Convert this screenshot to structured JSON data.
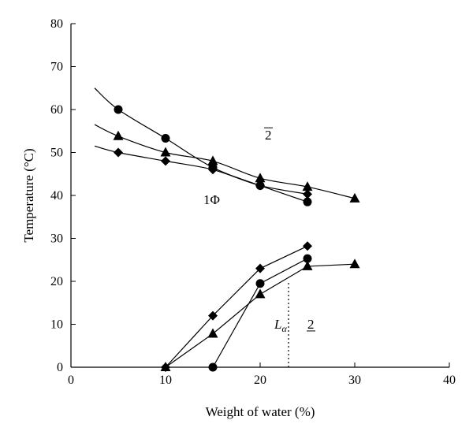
{
  "chart_data": {
    "type": "scatter",
    "xlabel": "Weight of water (%)",
    "ylabel": "Temperature (°C)",
    "xlim": [
      0,
      40
    ],
    "ylim": [
      0,
      80
    ],
    "x_ticks": [
      0,
      10,
      20,
      30,
      40
    ],
    "y_ticks": [
      0,
      10,
      20,
      30,
      40,
      50,
      60,
      70,
      80
    ],
    "grid": false,
    "series": [
      {
        "marker": "circle",
        "upper_points": [
          [
            5,
            60
          ],
          [
            10,
            53.3
          ],
          [
            15,
            46.5
          ],
          [
            20,
            42.3
          ],
          [
            25,
            38.5
          ]
        ],
        "upper_curve": [
          [
            2.5,
            65
          ],
          [
            5,
            60
          ],
          [
            10,
            53.3
          ],
          [
            15,
            46.5
          ],
          [
            20,
            42.3
          ],
          [
            25,
            38.5
          ]
        ],
        "lower_points": [
          [
            15,
            0
          ],
          [
            20,
            19.5
          ],
          [
            25,
            25.3
          ]
        ],
        "lower_curve": [
          [
            15,
            0
          ],
          [
            20,
            19.5
          ],
          [
            25,
            25.3
          ]
        ]
      },
      {
        "marker": "triangle",
        "upper_points": [
          [
            5,
            53.8
          ],
          [
            10,
            50
          ],
          [
            15,
            48
          ],
          [
            20,
            44
          ],
          [
            25,
            42
          ],
          [
            30,
            39.3
          ]
        ],
        "upper_curve": [
          [
            2.5,
            56.5
          ],
          [
            5,
            53.8
          ],
          [
            10,
            50
          ],
          [
            15,
            48
          ],
          [
            20,
            44
          ],
          [
            25,
            42
          ],
          [
            30,
            39.3
          ]
        ],
        "lower_points": [
          [
            10,
            0
          ],
          [
            15,
            7.8
          ],
          [
            20,
            17
          ],
          [
            25,
            23.5
          ],
          [
            30,
            24
          ]
        ],
        "lower_curve": [
          [
            10,
            0
          ],
          [
            15,
            7.8
          ],
          [
            20,
            17
          ],
          [
            25,
            23.5
          ],
          [
            30,
            24
          ]
        ]
      },
      {
        "marker": "diamond",
        "upper_points": [
          [
            5,
            50
          ],
          [
            10,
            48
          ],
          [
            15,
            46
          ],
          [
            20,
            42.3
          ],
          [
            25,
            40.3
          ]
        ],
        "upper_curve": [
          [
            2.5,
            51.5
          ],
          [
            5,
            50
          ],
          [
            10,
            48
          ],
          [
            15,
            46
          ],
          [
            20,
            42.3
          ],
          [
            25,
            40.3
          ]
        ],
        "lower_points": [
          [
            10,
            0
          ],
          [
            15,
            12
          ],
          [
            20,
            23
          ],
          [
            25,
            28.2
          ]
        ],
        "lower_curve": [
          [
            10,
            0
          ],
          [
            15,
            12
          ],
          [
            20,
            23
          ],
          [
            25,
            28.2
          ]
        ]
      }
    ],
    "dotted_line": [
      [
        23,
        0
      ],
      [
        23,
        20
      ]
    ],
    "annotations": [
      {
        "text": "2",
        "style": "overline",
        "x": 20.5,
        "y": 53
      },
      {
        "text": "1Φ",
        "style": "plain",
        "x": 14,
        "y": 38
      },
      {
        "text": "L",
        "sub": "α",
        "style": "italic",
        "x": 21.5,
        "y": 9
      },
      {
        "text": "2",
        "style": "underline",
        "x": 25,
        "y": 9
      }
    ]
  }
}
